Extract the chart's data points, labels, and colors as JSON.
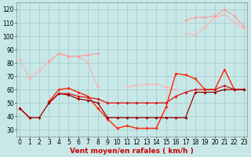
{
  "x": [
    0,
    1,
    2,
    3,
    4,
    5,
    6,
    7,
    8,
    9,
    10,
    11,
    12,
    13,
    14,
    15,
    16,
    17,
    18,
    19,
    20,
    21,
    22,
    23
  ],
  "series": [
    {
      "color": "#ffb0b0",
      "linewidth": 0.8,
      "markersize": 2.0,
      "values": [
        83,
        68,
        74,
        81,
        87,
        85,
        85,
        80,
        62,
        null,
        null,
        null,
        null,
        null,
        null,
        null,
        null,
        102,
        101,
        107,
        114,
        116,
        110,
        106
      ]
    },
    {
      "color": "#ff9999",
      "linewidth": 0.8,
      "markersize": 2.0,
      "values": [
        null,
        null,
        null,
        81,
        87,
        85,
        85,
        86,
        87,
        null,
        null,
        null,
        null,
        null,
        null,
        null,
        null,
        112,
        114,
        114,
        115,
        120,
        115,
        107
      ]
    },
    {
      "color": "#ffb0b0",
      "linewidth": 0.8,
      "markersize": 2.0,
      "values": [
        null,
        null,
        null,
        null,
        null,
        null,
        null,
        null,
        null,
        null,
        null,
        62,
        63,
        64,
        64,
        62,
        60,
        null,
        null,
        null,
        null,
        null,
        null,
        null
      ]
    },
    {
      "color": "#ff2200",
      "linewidth": 1.0,
      "markersize": 2.0,
      "values": [
        46,
        39,
        null,
        51,
        60,
        61,
        58,
        55,
        46,
        38,
        31,
        33,
        31,
        31,
        31,
        47,
        72,
        71,
        68,
        60,
        60,
        75,
        60,
        60
      ]
    },
    {
      "color": "#dd1111",
      "linewidth": 0.9,
      "markersize": 2.0,
      "values": [
        null,
        null,
        null,
        50,
        57,
        57,
        55,
        54,
        53,
        50,
        50,
        50,
        50,
        50,
        50,
        50,
        55,
        58,
        60,
        60,
        60,
        63,
        60,
        60
      ]
    },
    {
      "color": "#990000",
      "linewidth": 0.9,
      "markersize": 2.0,
      "values": [
        46,
        39,
        39,
        50,
        57,
        56,
        53,
        52,
        50,
        39,
        39,
        39,
        39,
        39,
        39,
        39,
        39,
        39,
        58,
        58,
        58,
        60,
        60,
        60
      ]
    }
  ],
  "xlabel": "Vent moyen/en rafales ( km/h )",
  "xlim_min": -0.3,
  "xlim_max": 23.3,
  "ylim_min": 25,
  "ylim_max": 125,
  "yticks": [
    30,
    40,
    50,
    60,
    70,
    80,
    90,
    100,
    110,
    120
  ],
  "xticks": [
    0,
    1,
    2,
    3,
    4,
    5,
    6,
    7,
    8,
    9,
    10,
    11,
    12,
    13,
    14,
    15,
    16,
    17,
    18,
    19,
    20,
    21,
    22,
    23
  ],
  "bg_color": "#c8e8e8",
  "grid_color": "#a0c8c8",
  "xlabel_fontsize": 6.5,
  "tick_fontsize": 5.5
}
